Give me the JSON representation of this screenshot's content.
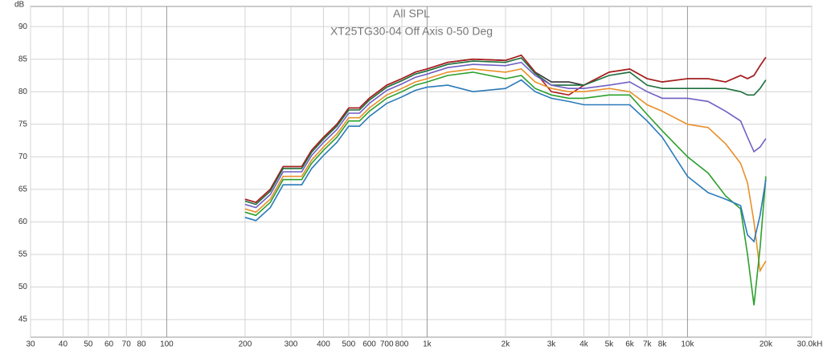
{
  "chart_data": {
    "type": "line",
    "title": "All SPL",
    "subtitle": "XT25TG30-04 Off Axis 0-50 Deg",
    "y_label": "dB",
    "log_x": true,
    "grid": true,
    "xlim": [
      30,
      30000
    ],
    "ylim": [
      42.3,
      93.1
    ],
    "xticks": [
      30,
      40,
      50,
      60,
      70,
      80,
      100,
      200,
      300,
      400,
      500,
      600,
      700,
      800,
      {
        "value": 1000,
        "label": "1k"
      },
      {
        "value": 2000,
        "label": "2k"
      },
      {
        "value": 3000,
        "label": "3k"
      },
      {
        "value": 4000,
        "label": "4k"
      },
      {
        "value": 5000,
        "label": "5k"
      },
      {
        "value": 6000,
        "label": "6k"
      },
      {
        "value": 7000,
        "label": "7k"
      },
      {
        "value": 8000,
        "label": "8k"
      },
      {
        "value": 10000,
        "label": "10k"
      },
      {
        "value": 20000,
        "label": "20k"
      },
      {
        "value": 30000,
        "label": "30.0kHz"
      }
    ],
    "yticks": [
      45,
      50,
      55,
      60,
      65,
      70,
      75,
      80,
      85,
      90
    ],
    "x": [
      200,
      220,
      250,
      280,
      300,
      330,
      360,
      400,
      450,
      500,
      550,
      600,
      700,
      800,
      900,
      1000,
      1200,
      1500,
      2000,
      2300,
      2600,
      3000,
      3500,
      4000,
      5000,
      6000,
      7000,
      8000,
      10000,
      12000,
      14000,
      16000,
      17000,
      18000,
      19000,
      20000
    ],
    "series": [
      {
        "color": "#333333",
        "values": [
          63.5,
          63,
          65,
          68.5,
          68.5,
          68.5,
          71,
          73,
          75,
          77.5,
          77.5,
          79,
          81,
          82,
          83,
          83.5,
          84.5,
          85,
          84.8,
          85.6,
          83,
          81.5,
          81.5,
          81,
          83,
          83.5,
          82,
          81.5,
          82,
          82,
          81.5,
          82.5,
          82,
          82.5,
          84,
          85.3
        ]
      },
      {
        "color": "#b01c1c",
        "values": [
          63.5,
          63,
          65,
          68.5,
          68.5,
          68.5,
          71,
          73,
          75,
          77.5,
          77.5,
          79,
          81,
          82,
          83,
          83.5,
          84.5,
          85,
          84.8,
          85.6,
          83,
          80,
          79.5,
          81,
          83,
          83.5,
          82,
          81.5,
          82,
          82,
          81.5,
          82.5,
          82,
          82.5,
          84,
          85.3
        ]
      },
      {
        "color": "#1e6e3c",
        "values": [
          63.2,
          62.7,
          64.7,
          68.2,
          68.2,
          68.2,
          70.7,
          72.7,
          74.7,
          77.2,
          77.2,
          78.7,
          80.7,
          81.7,
          82.7,
          83.2,
          84.2,
          84.7,
          84.5,
          85.2,
          82.8,
          81,
          81,
          81,
          82.5,
          83,
          81,
          80.5,
          80.5,
          80.5,
          80.5,
          80,
          79.5,
          79.5,
          80.5,
          81.8
        ]
      },
      {
        "color": "#6f5fc4",
        "values": [
          62.7,
          62.2,
          64.2,
          67.7,
          67.7,
          67.7,
          70.2,
          72.2,
          74.2,
          76.7,
          76.7,
          78.2,
          80.2,
          81.2,
          82.2,
          82.7,
          83.7,
          84.2,
          84,
          84.5,
          82.5,
          81,
          80.5,
          80.5,
          81,
          81.5,
          80,
          79,
          79,
          78.5,
          77,
          75.5,
          73,
          70.8,
          71.5,
          72.8
        ]
      },
      {
        "color": "#e8902a",
        "values": [
          62,
          61.5,
          63.5,
          67,
          67,
          67,
          69.5,
          71.5,
          73.5,
          76,
          76,
          77.5,
          79.5,
          80.5,
          81.5,
          82,
          83,
          83.5,
          83,
          83.5,
          81.5,
          80.5,
          80,
          80,
          80.5,
          80,
          78,
          77,
          75,
          74.5,
          72,
          69,
          66,
          60,
          52.5,
          54
        ]
      },
      {
        "color": "#2ca02c",
        "values": [
          61.5,
          61,
          63,
          66.5,
          66.5,
          66.5,
          69,
          71,
          73,
          75.5,
          75.5,
          77,
          79,
          80,
          81,
          81.5,
          82.5,
          83,
          82,
          82.5,
          80.5,
          79.5,
          79,
          79,
          79.5,
          79.5,
          76.5,
          74,
          70,
          67.5,
          64,
          62,
          55,
          47.2,
          56,
          67
        ]
      },
      {
        "color": "#2a7ab9",
        "values": [
          60.7,
          60.2,
          62.2,
          65.7,
          65.7,
          65.7,
          68.2,
          70.2,
          72.2,
          74.7,
          74.7,
          76.2,
          78.2,
          79.2,
          80.2,
          80.7,
          81,
          80,
          80.5,
          81.8,
          80,
          79,
          78.5,
          78,
          78,
          78,
          75.5,
          73,
          67,
          64.5,
          63.5,
          62.5,
          58,
          57,
          61,
          66.5
        ]
      }
    ]
  }
}
